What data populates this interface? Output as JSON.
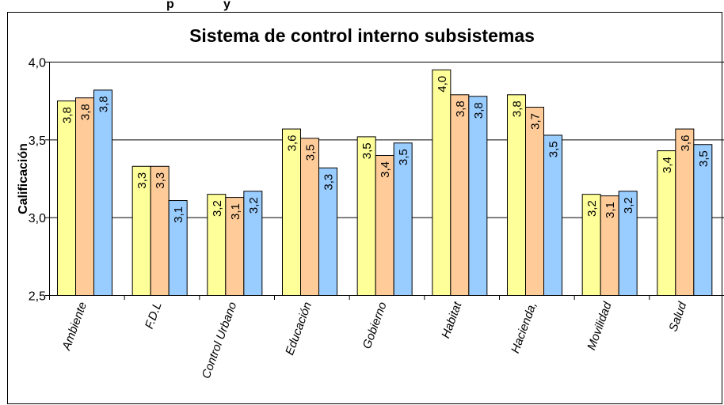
{
  "page": {
    "top_caption": "p              y"
  },
  "chart_data": {
    "type": "bar",
    "title": "Sistema de control interno subsistemas",
    "xlabel": "",
    "ylabel": "Calificación",
    "ylim": [
      2.5,
      4.0
    ],
    "y_ticks": [
      {
        "value": 2.5,
        "label": "2,5"
      },
      {
        "value": 3.0,
        "label": "3,0"
      },
      {
        "value": 3.5,
        "label": "3,5"
      },
      {
        "value": 4.0,
        "label": "4,0"
      }
    ],
    "categories": [
      "Ambiente",
      "F.D.L",
      "Control Urbano",
      "Educación",
      "Gobierno",
      "Habitat",
      "Hacienda,",
      "Movilidad",
      "Salud"
    ],
    "series": [
      {
        "color": "#FFFF99",
        "values": [
          3.75,
          3.33,
          3.15,
          3.57,
          3.52,
          3.95,
          3.79,
          3.15,
          3.43
        ],
        "labels": [
          "3,8",
          "3,3",
          "3,2",
          "3,6",
          "3,5",
          "4,0",
          "3,8",
          "3,2",
          "3,4"
        ]
      },
      {
        "color": "#FFCC99",
        "values": [
          3.77,
          3.33,
          3.13,
          3.51,
          3.4,
          3.79,
          3.71,
          3.14,
          3.57
        ],
        "labels": [
          "3,8",
          "3,3",
          "3,1",
          "3,5",
          "3,4",
          "3,8",
          "3,7",
          "3,1",
          "3,6"
        ]
      },
      {
        "color": "#99CCFF",
        "values": [
          3.82,
          3.11,
          3.17,
          3.32,
          3.48,
          3.78,
          3.53,
          3.17,
          3.47
        ],
        "labels": [
          "3,8",
          "3,1",
          "3,2",
          "3,3",
          "3,5",
          "3,8",
          "3,5",
          "3,2",
          "3,5"
        ]
      }
    ],
    "grid": true,
    "legend": "none"
  }
}
